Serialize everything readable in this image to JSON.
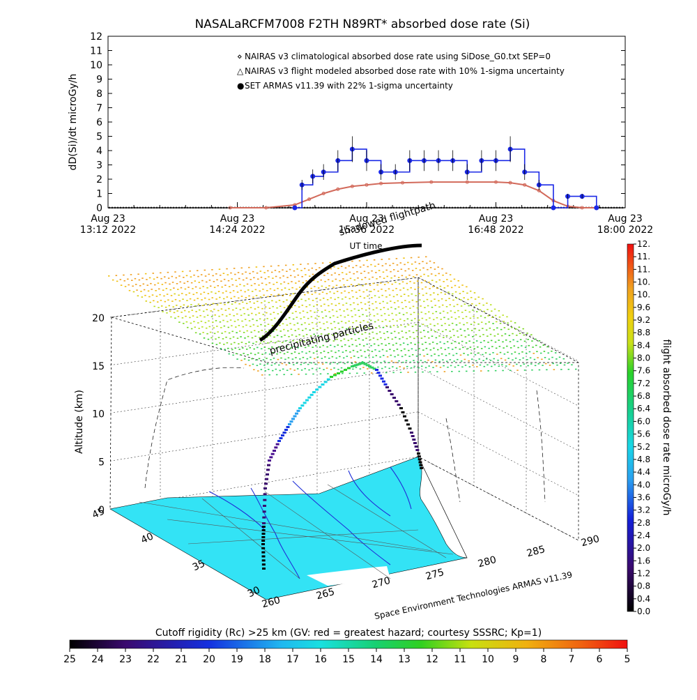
{
  "title": "NASALaRCFM7008  F2TH N89RT* absorbed dose rate (Si)",
  "credit": "Space Environment Technologies ARMAS v11.39",
  "colors": {
    "nairas_clim": "#d2695a",
    "nairas_flight": "#000000",
    "armas": "#1a28e6",
    "ocean": "#33e3f5",
    "grid": "#000000"
  },
  "top_chart": {
    "ylabel": "dD(Si)/dt microGy/h",
    "xlabel": "UT time",
    "y_ticks": [
      "0",
      "1",
      "2",
      "3",
      "4",
      "5",
      "6",
      "7",
      "8",
      "9",
      "10",
      "11",
      "12"
    ],
    "x_ticks": [
      {
        "line1": "Aug 23",
        "line2": "13:12 2022"
      },
      {
        "line1": "Aug 23",
        "line2": "14:24 2022"
      },
      {
        "line1": "Aug 23",
        "line2": "15:36 2022"
      },
      {
        "line1": "Aug 23",
        "line2": "16:48 2022"
      },
      {
        "line1": "Aug 23",
        "line2": "18:00 2022"
      }
    ],
    "legend": [
      {
        "key": "nairas_clim",
        "symbol": "⋄",
        "label": "NAIRAS v3 climatological absorbed dose rate using SiDose_G0.txt SEP=0"
      },
      {
        "key": "nairas_flight",
        "symbol": "△",
        "label": "NAIRAS v3 flight modeled absorbed dose rate with 10% 1-sigma uncertainty"
      },
      {
        "key": "armas",
        "symbol": "●",
        "label": "SET ARMAS v11.39 with 22% 1-sigma uncertainty"
      }
    ]
  },
  "chart_data": [
    {
      "type": "line",
      "title": "NASALaRCFM7008  F2TH N89RT* absorbed dose rate (Si)",
      "xlabel": "UT time",
      "ylabel": "dD(Si)/dt microGy/h",
      "xlim": [
        "13:12",
        "18:00"
      ],
      "ylim": [
        0,
        12
      ],
      "series": [
        {
          "name": "NAIRAS v3 climatological absorbed dose rate using SiDose_G0.txt SEP=0",
          "x": [
            "14:20",
            "14:40",
            "14:56",
            "15:04",
            "15:12",
            "15:20",
            "15:28",
            "15:36",
            "15:44",
            "15:56",
            "16:12",
            "16:32",
            "16:48",
            "16:56",
            "17:04",
            "17:12",
            "17:20",
            "17:28",
            "17:36",
            "17:44"
          ],
          "y": [
            0,
            0,
            0.2,
            0.6,
            1.0,
            1.3,
            1.5,
            1.6,
            1.7,
            1.75,
            1.8,
            1.8,
            1.8,
            1.75,
            1.6,
            1.2,
            0.5,
            0.1,
            0,
            0
          ]
        },
        {
          "name": "NAIRAS v3 flight modeled absorbed dose rate with 10% 1-sigma uncertainty",
          "x": [
            "13:12",
            "18:00"
          ],
          "y": [
            0,
            0
          ]
        },
        {
          "name": "SET ARMAS v11.39 with 22% 1-sigma uncertainty",
          "x": [
            "14:56",
            "15:00",
            "15:06",
            "15:12",
            "15:20",
            "15:28",
            "15:36",
            "15:44",
            "15:52",
            "16:00",
            "16:08",
            "16:16",
            "16:24",
            "16:32",
            "16:40",
            "16:48",
            "16:56",
            "17:04",
            "17:12",
            "17:20",
            "17:28",
            "17:36",
            "17:44"
          ],
          "y": [
            0,
            1.6,
            2.2,
            2.5,
            3.3,
            4.1,
            3.3,
            2.5,
            2.5,
            3.3,
            3.3,
            3.3,
            3.3,
            2.5,
            3.3,
            3.3,
            4.1,
            2.5,
            1.6,
            0,
            0.8,
            0.8,
            0
          ]
        }
      ]
    },
    {
      "type": "scatter",
      "title": "",
      "zlabel": "Altitude (km)",
      "zlim": [
        0,
        20
      ],
      "z_ticks": [
        "0",
        "5",
        "10",
        "15",
        "20"
      ],
      "lat_ticks": [
        "30",
        "35",
        "40",
        "45"
      ],
      "lon_ticks": [
        "260",
        "265",
        "270",
        "275",
        "280",
        "285",
        "290"
      ],
      "annotations": [
        "shadowed flightpath",
        "precipitating particles"
      ],
      "colorbar": {
        "label": "flight absorbed dose rate microGy/h",
        "ticks": [
          "0.0",
          "0.4",
          "0.8",
          "1.2",
          "1.6",
          "2.0",
          "2.4",
          "2.8",
          "3.2",
          "3.6",
          "4.0",
          "4.4",
          "4.8",
          "5.2",
          "5.6",
          "6.0",
          "6.4",
          "6.8",
          "7.2",
          "7.6",
          "8.0",
          "8.4",
          "8.8",
          "9.2",
          "9.6",
          "10.",
          "10.",
          "11.",
          "11.",
          "12."
        ]
      },
      "bottom_colorbar": {
        "label": "Cutoff rigidity (Rc) >25 km (GV: red = greatest hazard; courtesy SSSRC; Kp=1)",
        "ticks": [
          "25",
          "24",
          "23",
          "22",
          "21",
          "20",
          "19",
          "18",
          "17",
          "16",
          "15",
          "14",
          "13",
          "12",
          "11",
          "10",
          "9",
          "8",
          "7",
          "6",
          "5"
        ]
      }
    }
  ]
}
